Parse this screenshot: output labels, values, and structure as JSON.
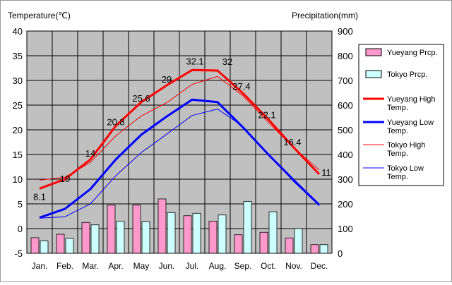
{
  "chart_data": {
    "type": "bar",
    "y_axis_left_label": "Temperature(℃)",
    "y_axis_right_label": "Precipitation(mm)",
    "y_left_range": [
      -5,
      40
    ],
    "y_left_ticks": [
      "40",
      "35",
      "30",
      "25",
      "20",
      "15",
      "10",
      "5",
      "0",
      "-5"
    ],
    "y_right_range": [
      0,
      900
    ],
    "y_right_ticks": [
      "900",
      "800",
      "700",
      "600",
      "500",
      "400",
      "300",
      "200",
      "100",
      "0"
    ],
    "categories": [
      "Jan.",
      "Feb.",
      "Mar.",
      "Apr.",
      "May",
      "Jun.",
      "Jul.",
      "Aug.",
      "Sep.",
      "Oct.",
      "Nov.",
      "Dec."
    ],
    "grid": true,
    "legend_position": "right",
    "series": [
      {
        "name": "Yueyang Prcp.",
        "kind": "bar",
        "axis": "right",
        "color": "#ff99cc",
        "values": [
          63,
          77,
          125,
          195,
          195,
          220,
          152,
          130,
          75,
          85,
          62,
          35
        ]
      },
      {
        "name": "Tokyo Prcp.",
        "kind": "bar",
        "axis": "right",
        "color": "#ccffff",
        "values": [
          50,
          60,
          115,
          130,
          128,
          165,
          162,
          155,
          210,
          168,
          100,
          35
        ]
      },
      {
        "name": "Yueyang High Temp.",
        "kind": "line",
        "axis": "left",
        "color": "#ff0000",
        "width": 3,
        "values": [
          8.1,
          10,
          14,
          20.8,
          25.6,
          29,
          32.1,
          32,
          27.4,
          22.1,
          16.4,
          11
        ]
      },
      {
        "name": "Yueyang Low Temp.",
        "kind": "line",
        "axis": "left",
        "color": "#0000ff",
        "width": 3,
        "values": [
          2.2,
          4,
          8,
          14,
          19,
          22.7,
          26.1,
          25.6,
          20.5,
          15,
          9.8,
          4.8
        ]
      },
      {
        "name": "Tokyo High Temp.",
        "kind": "line",
        "axis": "left",
        "color": "#ff0000",
        "width": 1,
        "values": [
          9.8,
          10.4,
          13.4,
          18.8,
          22.8,
          25.5,
          29.2,
          30.8,
          26.9,
          21.5,
          16.3,
          11.9
        ]
      },
      {
        "name": "Tokyo Low Temp.",
        "kind": "line",
        "axis": "left",
        "color": "#0000ff",
        "width": 1,
        "values": [
          2.1,
          2.4,
          5,
          10.7,
          15.4,
          19.1,
          22.9,
          24.2,
          20.7,
          15,
          9.5,
          4.6
        ]
      }
    ],
    "data_labels": [
      "8.1",
      "10",
      "14",
      "20.8",
      "25.6",
      "29",
      "32.1",
      "32",
      "27.4",
      "22.1",
      "16.4",
      "11"
    ]
  }
}
